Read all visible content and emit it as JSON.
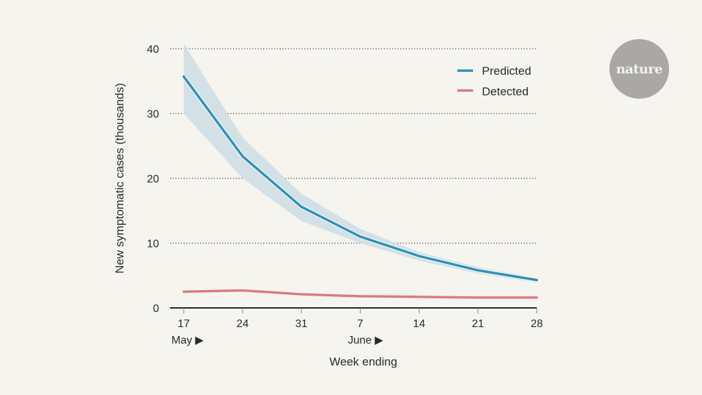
{
  "logo": {
    "text": "nature"
  },
  "chart_data": {
    "type": "line",
    "title": "",
    "xlabel": "Week ending",
    "ylabel": "New symptomatic cases (thousands)",
    "ylim": [
      0,
      40
    ],
    "yticks": [
      0,
      10,
      20,
      30,
      40
    ],
    "grid": "horizontal dotted",
    "legend_position": "top-right",
    "categories": [
      "17",
      "24",
      "31",
      "7",
      "14",
      "21",
      "28"
    ],
    "month_labels": [
      {
        "label": "May ▶",
        "at_category": "17"
      },
      {
        "label": "June ▶",
        "at_category": "7"
      }
    ],
    "x": [
      0,
      7,
      14,
      21,
      28,
      35,
      42
    ],
    "series": [
      {
        "name": "Predicted",
        "color": "#2e90b5",
        "values": [
          35.7,
          23.4,
          15.6,
          11.0,
          8.0,
          5.8,
          4.3
        ],
        "band_upper": [
          40.8,
          26.3,
          17.6,
          12.2,
          8.6,
          6.3,
          4.6
        ],
        "band_lower": [
          30.0,
          20.0,
          13.4,
          10.0,
          7.3,
          5.3,
          3.9
        ],
        "band_color": "#d3e1e6"
      },
      {
        "name": "Detected",
        "color": "#d97c7d",
        "values": [
          2.5,
          2.7,
          2.1,
          1.8,
          1.7,
          1.6,
          1.6
        ]
      }
    ]
  }
}
